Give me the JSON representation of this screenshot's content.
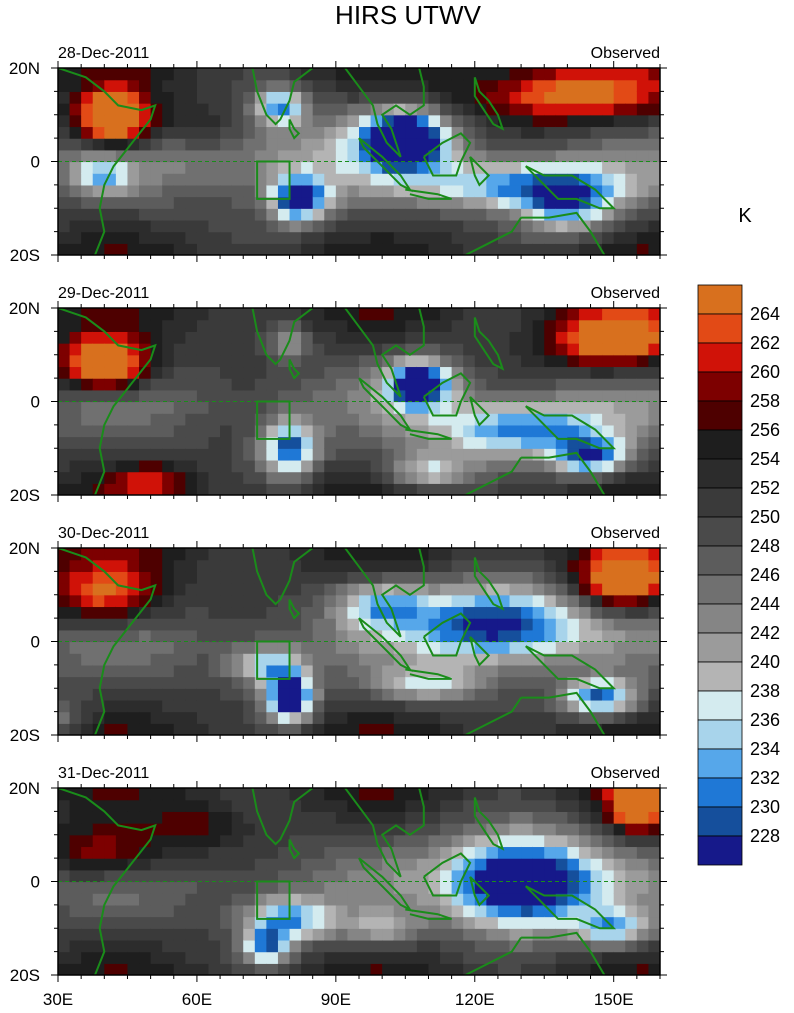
{
  "chart_data": {
    "type": "heatmap",
    "title": "HIRS UTWV",
    "units": "K",
    "panel_right_label": "Observed",
    "panels": [
      {
        "date": "28-Dec-2011"
      },
      {
        "date": "29-Dec-2011"
      },
      {
        "date": "30-Dec-2011"
      },
      {
        "date": "31-Dec-2011"
      }
    ],
    "x_ticks": [
      "30E",
      "60E",
      "90E",
      "120E",
      "150E"
    ],
    "x_tick_values": [
      30,
      60,
      90,
      120,
      150
    ],
    "y_ticks": [
      "20N",
      "0",
      "20S"
    ],
    "y_tick_values": [
      20,
      0,
      -20
    ],
    "xlim": [
      30,
      160
    ],
    "ylim": [
      -20,
      20
    ],
    "colorbar": {
      "labels": [
        "264",
        "262",
        "260",
        "258",
        "256",
        "254",
        "252",
        "250",
        "248",
        "246",
        "244",
        "242",
        "240",
        "238",
        "236",
        "234",
        "232",
        "230",
        "228"
      ],
      "colors": [
        "#d8701e",
        "#e24a16",
        "#d01208",
        "#7d0000",
        "#4e0000",
        "#1e1e1e",
        "#2c2c2c",
        "#3a3a3a",
        "#4a4a4a",
        "#5c5c5c",
        "#707070",
        "#858585",
        "#9b9b9b",
        "#b4b4b4",
        "#d4ebef",
        "#a8d4eb",
        "#56a7ea",
        "#1f78d6",
        "#154f9c",
        "#16198a"
      ],
      "colormap_note": "228 = deepest navy; 264 = orange"
    },
    "line_colors": {
      "coast": "#1a8c1a"
    }
  }
}
